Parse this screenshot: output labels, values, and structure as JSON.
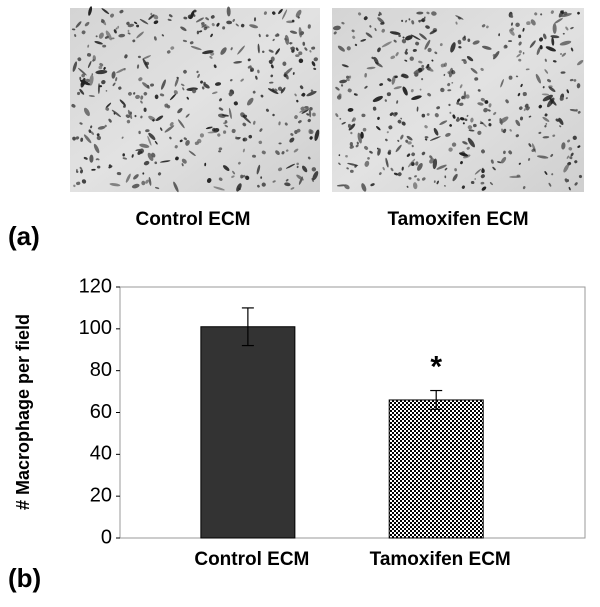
{
  "micrographs": {
    "panel_label": "(a)",
    "captions": [
      "Control ECM",
      "Tamoxifen ECM"
    ]
  },
  "chart_data": {
    "type": "bar",
    "panel_label": "(b)",
    "y_label": "# Macrophage per field",
    "categories": [
      "Control ECM",
      "Tamoxifen ECM"
    ],
    "values": [
      101,
      66
    ],
    "errors": [
      9,
      4.5
    ],
    "color": "#333333",
    "patterns": [
      "solid",
      "checkerboard"
    ],
    "annotations": [
      {
        "category": 1,
        "text": "*"
      }
    ],
    "ylim": [
      0,
      120
    ],
    "yticks": [
      0,
      20,
      40,
      60,
      80,
      100,
      120
    ],
    "grid": false
  }
}
